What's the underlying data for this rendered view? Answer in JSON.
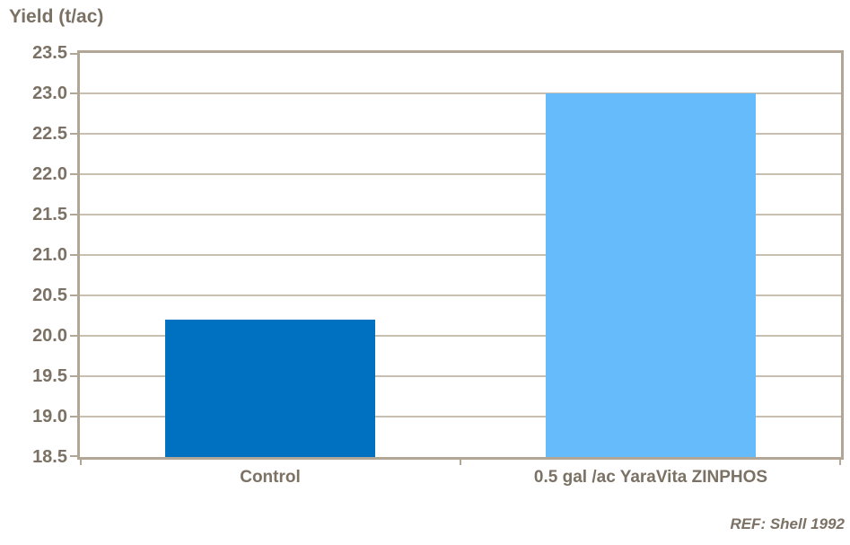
{
  "title": "Yield (t/ac)",
  "footnote": "REF: Shell 1992",
  "colors": {
    "text": "#7b7164",
    "axis": "#b2a697",
    "gridline": "#c9bfb0",
    "bar_control": "#0070c0",
    "bar_treatment": "#66bbfa",
    "background": "#ffffff"
  },
  "chart_data": {
    "type": "bar",
    "title": "Yield (t/ac)",
    "ylabel": "Yield (t/ac)",
    "xlabel": "",
    "categories": [
      "Control",
      "0.5 gal /ac YaraVita ZINPHOS"
    ],
    "values": [
      20.2,
      23.0
    ],
    "bar_colors": [
      "#0070c0",
      "#66bbfa"
    ],
    "ylim": [
      18.5,
      23.5
    ],
    "ytick_step": 0.5,
    "ytick_labels": [
      "18.5",
      "19.0",
      "19.5",
      "20.0",
      "20.5",
      "21.0",
      "21.5",
      "22.0",
      "22.5",
      "23.0",
      "23.5"
    ],
    "grid": true,
    "legend_position": "none",
    "annotation": "REF: Shell 1992"
  }
}
